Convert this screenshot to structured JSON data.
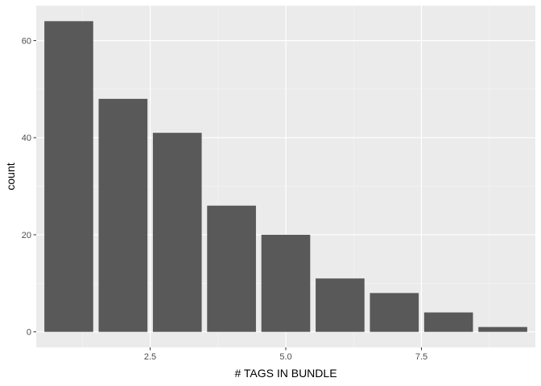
{
  "chart_data": {
    "type": "bar",
    "title": "",
    "xlabel": "# TAGS IN BUNDLE",
    "ylabel": "count",
    "x": [
      1,
      2,
      3,
      4,
      5,
      6,
      7,
      8,
      9
    ],
    "values": [
      64,
      48,
      41,
      26,
      20,
      11,
      8,
      4,
      1
    ],
    "xlim": [
      0.4,
      9.6
    ],
    "ylim": [
      -3.2,
      67.2
    ],
    "x_ticks": [
      2.5,
      5.0,
      7.5
    ],
    "x_tick_labels": [
      "2.5",
      "5.0",
      "7.5"
    ],
    "y_ticks": [
      0,
      20,
      40,
      60
    ],
    "y_tick_labels": [
      "0",
      "20",
      "40",
      "60"
    ],
    "grid": true,
    "colors": {
      "panel_background": "#ebebeb",
      "grid_major": "#ffffff",
      "grid_minor": "#f5f5f5",
      "bar_fill": "#595959",
      "tick_mark": "#333333"
    }
  }
}
